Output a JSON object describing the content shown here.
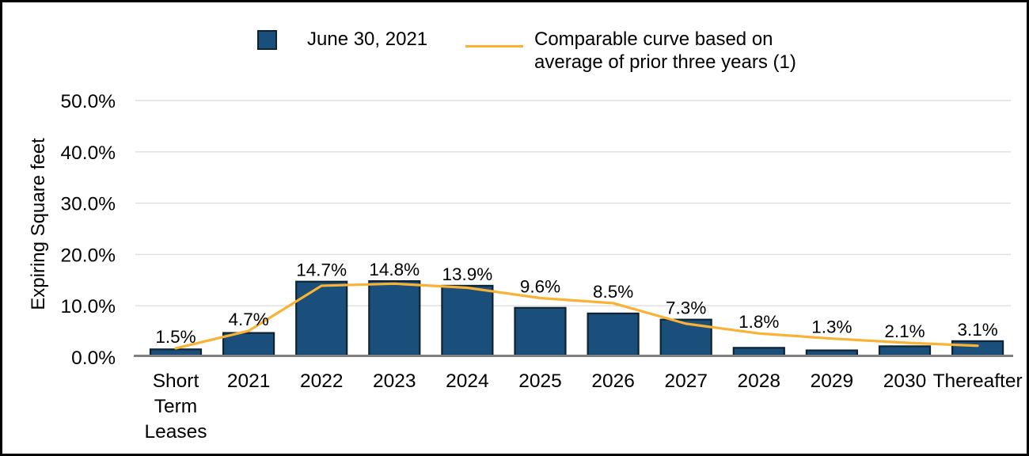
{
  "chart_data": {
    "type": "bar",
    "combo": "bar+line",
    "title": "",
    "ylabel": "Expiring Square feet",
    "xlabel": "",
    "ylim": [
      0,
      50
    ],
    "yticks": [
      0,
      10,
      20,
      30,
      40,
      50
    ],
    "ytick_labels": [
      "0.0%",
      "10.0%",
      "20.0%",
      "30.0%",
      "40.0%",
      "50.0%"
    ],
    "grid": "horizontal",
    "legend_position": "top",
    "categories": [
      "Short Term Leases",
      "2021",
      "2022",
      "2023",
      "2024",
      "2025",
      "2026",
      "2027",
      "2028",
      "2029",
      "2030",
      "Thereafter"
    ],
    "series": [
      {
        "name": "June 30, 2021",
        "type": "bar",
        "color": "#1A4E7B",
        "border_color": "#0E2433",
        "values": [
          1.5,
          4.7,
          14.7,
          14.8,
          13.9,
          9.6,
          8.5,
          7.3,
          1.8,
          1.3,
          2.1,
          3.1
        ],
        "data_labels": [
          "1.5%",
          "4.7%",
          "14.7%",
          "14.8%",
          "13.9%",
          "9.6%",
          "8.5%",
          "7.3%",
          "1.8%",
          "1.3%",
          "2.1%",
          "3.1%"
        ]
      },
      {
        "name": "Comparable curve based on average of prior three years (1)",
        "type": "line",
        "color": "#F9B234",
        "values_estimated_from_pixels": true,
        "values": [
          1.7,
          5.1,
          13.9,
          14.3,
          13.5,
          11.5,
          10.5,
          6.5,
          4.6,
          3.6,
          2.8,
          2.2
        ]
      }
    ],
    "axis_color": "#808080",
    "gridline_color": "#DEDEDE"
  }
}
